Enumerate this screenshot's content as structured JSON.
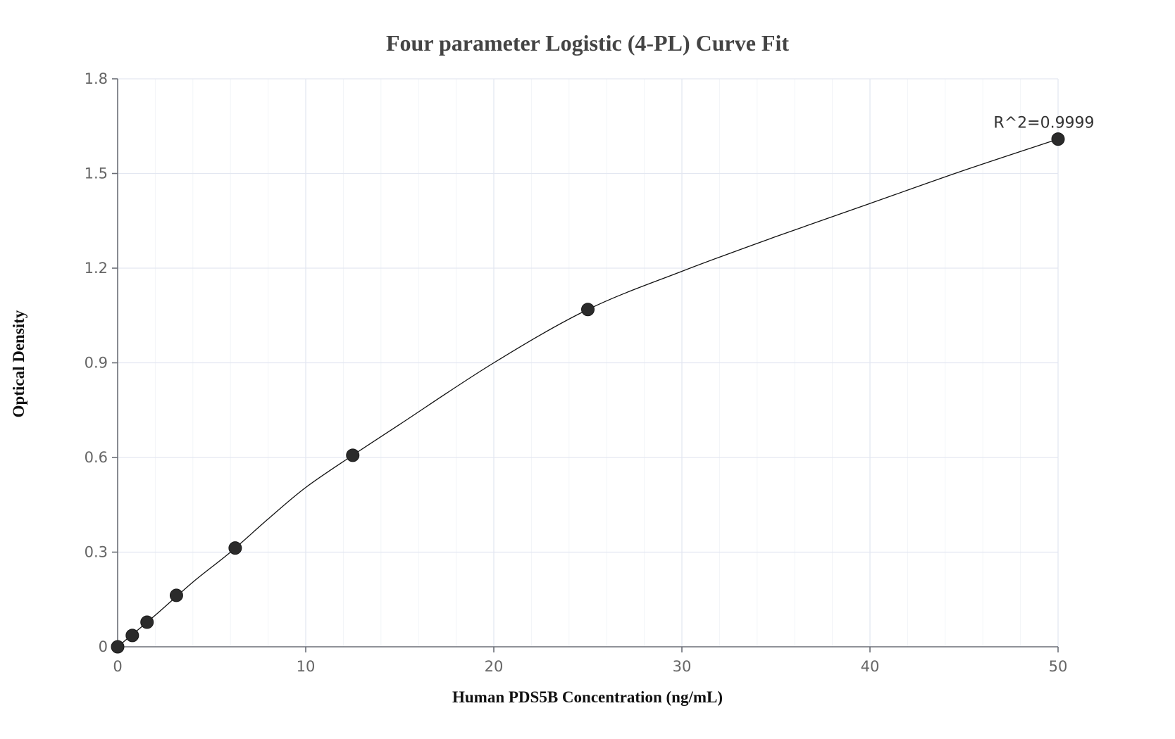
{
  "chart_data": {
    "type": "scatter",
    "title": "Four parameter Logistic (4-PL) Curve Fit",
    "xlabel": "Human PDS5B Concentration (ng/mL)",
    "ylabel": "Optical Density",
    "xlim": [
      0,
      50
    ],
    "ylim": [
      0,
      1.8
    ],
    "x_ticks": [
      0,
      10,
      20,
      30,
      40,
      50
    ],
    "y_ticks": [
      0,
      0.3,
      0.6,
      0.9,
      1.2,
      1.5,
      1.8
    ],
    "y_tick_labels": [
      "0",
      "0.3",
      "0.6",
      "0.9",
      "1.2",
      "1.5",
      "1.8"
    ],
    "grid": true,
    "series": [
      {
        "name": "Standard points",
        "x": [
          0,
          0.78,
          1.5625,
          3.125,
          6.25,
          12.5,
          25,
          50
        ],
        "y": [
          0.0,
          0.036,
          0.078,
          0.163,
          0.313,
          0.607,
          1.069,
          1.609
        ]
      },
      {
        "name": "4-PL fit curve",
        "x": [
          0,
          2,
          4,
          6,
          8,
          10,
          12.5,
          15,
          20,
          25,
          30,
          35,
          40,
          45,
          50
        ],
        "y": [
          0.0,
          0.1,
          0.205,
          0.3,
          0.405,
          0.505,
          0.607,
          0.705,
          0.9,
          1.069,
          1.19,
          1.3,
          1.405,
          1.51,
          1.609
        ]
      }
    ],
    "annotations": [
      {
        "text": "R^2=0.9999",
        "x": 50,
        "y": 1.609
      }
    ]
  }
}
